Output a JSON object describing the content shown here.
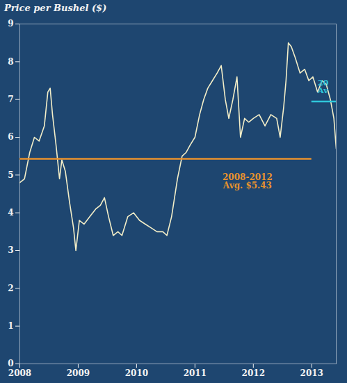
{
  "chart_data": {
    "type": "line",
    "title": "Price per Bushel ($)",
    "x": [
      2008.0,
      2008.08,
      2008.17,
      2008.25,
      2008.33,
      2008.42,
      2008.48,
      2008.52,
      2008.56,
      2008.62,
      2008.68,
      2008.72,
      2008.78,
      2008.85,
      2008.92,
      2008.96,
      2009.02,
      2009.1,
      2009.2,
      2009.3,
      2009.38,
      2009.45,
      2009.52,
      2009.6,
      2009.68,
      2009.75,
      2009.85,
      2009.95,
      2010.05,
      2010.15,
      2010.25,
      2010.35,
      2010.45,
      2010.52,
      2010.6,
      2010.7,
      2010.78,
      2010.85,
      2010.92,
      2011.0,
      2011.08,
      2011.15,
      2011.22,
      2011.3,
      2011.38,
      2011.45,
      2011.52,
      2011.58,
      2011.65,
      2011.72,
      2011.78,
      2011.85,
      2011.92,
      2012.0,
      2012.1,
      2012.2,
      2012.3,
      2012.4,
      2012.46,
      2012.52,
      2012.56,
      2012.6,
      2012.65,
      2012.72,
      2012.8,
      2012.88,
      2012.95,
      2013.02,
      2013.1,
      2013.18,
      2013.25,
      2013.32,
      2013.38,
      2013.42
    ],
    "values": [
      4.8,
      4.9,
      5.6,
      6.0,
      5.9,
      6.3,
      7.2,
      7.3,
      6.6,
      5.8,
      4.9,
      5.4,
      5.1,
      4.3,
      3.6,
      3.0,
      3.8,
      3.7,
      3.9,
      4.1,
      4.2,
      4.4,
      3.9,
      3.4,
      3.5,
      3.4,
      3.9,
      4.0,
      3.8,
      3.7,
      3.6,
      3.5,
      3.5,
      3.4,
      3.9,
      4.9,
      5.5,
      5.6,
      5.8,
      6.0,
      6.6,
      7.0,
      7.3,
      7.5,
      7.7,
      7.9,
      7.0,
      6.5,
      7.0,
      7.6,
      6.0,
      6.5,
      6.4,
      6.5,
      6.6,
      6.3,
      6.6,
      6.5,
      6.0,
      6.8,
      7.5,
      8.5,
      8.4,
      8.1,
      7.7,
      7.8,
      7.5,
      7.6,
      7.2,
      7.5,
      7.4,
      7.0,
      6.5,
      5.7
    ],
    "color": "#f3eec8",
    "xlim": [
      2008,
      2013.42
    ],
    "xticks": [
      2008,
      2009,
      2010,
      2011,
      2012,
      2013
    ],
    "ylim": [
      0,
      9
    ],
    "yticks": [
      0,
      1,
      2,
      3,
      4,
      5,
      6,
      7,
      8,
      9
    ],
    "grid": false,
    "reference_lines": [
      {
        "label": [
          "2008-2012",
          "Avg. $5.43"
        ],
        "value": 5.43,
        "x": [
          2008,
          2013
        ],
        "color": "#e8922e"
      },
      {
        "label": [
          "20",
          "Av"
        ],
        "value": 6.95,
        "x": [
          2013,
          2013.42
        ],
        "color": "#2fc6da"
      }
    ]
  }
}
